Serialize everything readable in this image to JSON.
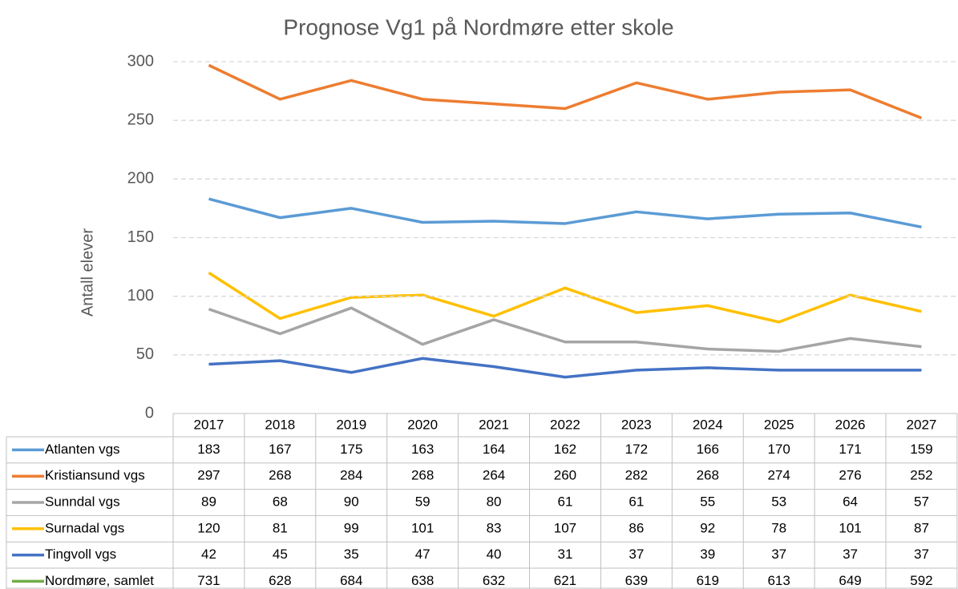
{
  "chart_data": {
    "type": "line",
    "title": "Prognose Vg1 på Nordmøre etter skole",
    "y_label": "Antall elever",
    "categories": [
      "2017",
      "2018",
      "2019",
      "2020",
      "2021",
      "2022",
      "2023",
      "2024",
      "2025",
      "2026",
      "2027"
    ],
    "ylim": [
      0,
      300
    ],
    "yticks": [
      0,
      50,
      100,
      150,
      200,
      250,
      300
    ],
    "grid": true,
    "series": [
      {
        "name": "Atlanten vgs",
        "color": "#5b9bd5",
        "values": [
          183,
          167,
          175,
          163,
          164,
          162,
          172,
          166,
          170,
          171,
          159
        ]
      },
      {
        "name": "Kristiansund vgs",
        "color": "#ed7d31",
        "values": [
          297,
          268,
          284,
          268,
          264,
          260,
          282,
          268,
          274,
          276,
          252
        ]
      },
      {
        "name": "Sunndal vgs",
        "color": "#a5a5a5",
        "values": [
          89,
          68,
          90,
          59,
          80,
          61,
          61,
          55,
          53,
          64,
          57
        ]
      },
      {
        "name": "Surnadal vgs",
        "color": "#ffc000",
        "values": [
          120,
          81,
          99,
          101,
          83,
          107,
          86,
          92,
          78,
          101,
          87
        ]
      },
      {
        "name": "Tingvoll vgs",
        "color": "#4472c4",
        "values": [
          42,
          45,
          35,
          47,
          40,
          31,
          37,
          39,
          37,
          37,
          37
        ]
      },
      {
        "name": "Nordmøre, samlet",
        "color": "#70ad47",
        "values": [
          731,
          628,
          684,
          638,
          632,
          621,
          639,
          619,
          613,
          649,
          592
        ]
      }
    ]
  }
}
